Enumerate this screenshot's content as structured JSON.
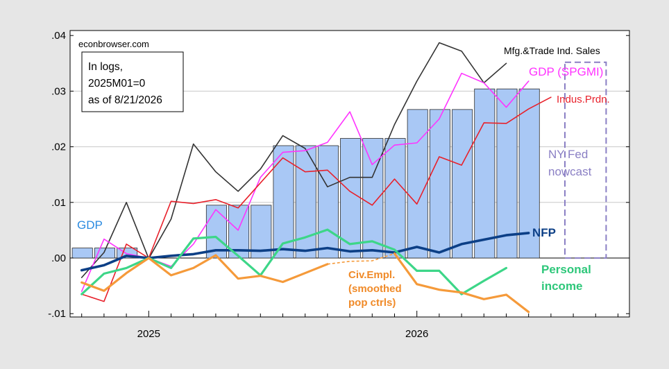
{
  "page": {
    "source_label": "econbrowser.com",
    "note_lines": [
      "In logs,",
      "2025M01=0",
      "as of 8/21/2026"
    ]
  },
  "chart_data": {
    "type": "line",
    "x_tick_labels": [
      "2025",
      "2026"
    ],
    "y_tick_labels": [
      ".04",
      ".03",
      ".02",
      ".01",
      ".00",
      "-.01"
    ],
    "ylim": [
      -0.01,
      0.04
    ],
    "xlim_months": [
      "2024-09",
      "2026-10"
    ],
    "grid": true,
    "months": [
      "2024-10",
      "2024-11",
      "2024-12",
      "2025-01",
      "2025-02",
      "2025-03",
      "2025-04",
      "2025-05",
      "2025-06",
      "2025-07",
      "2025-08",
      "2025-09",
      "2025-10",
      "2025-11",
      "2025-12",
      "2026-01",
      "2026-02",
      "2026-03",
      "2026-04",
      "2026-05",
      "2026-06",
      "2026-07",
      "2026-08",
      "2026-09"
    ],
    "bars": {
      "name": "GDP",
      "color": "#a9c8f5",
      "values": [
        0.0018,
        0.0018,
        0.0018,
        null,
        null,
        null,
        0.0095,
        0.0095,
        0.0095,
        0.0202,
        0.0202,
        0.0202,
        0.0215,
        0.0215,
        0.0215,
        0.0267,
        0.0267,
        0.0267,
        0.0304,
        0.0304,
        0.0304,
        null,
        null,
        null
      ]
    },
    "nowcast_box": {
      "label_lines": [
        "NY Fed",
        "nowcast"
      ],
      "x_start": "2026-08",
      "x_end": "2026-09",
      "y_top": 0.0352,
      "color": "#8a7fc4"
    },
    "series": [
      {
        "name": "Mfg.&Trade Ind. Sales",
        "color": "#333333",
        "width": 1.6,
        "values": [
          -0.0035,
          0.001,
          0.01,
          -0.0001,
          0.007,
          0.0205,
          0.0155,
          0.012,
          0.016,
          0.022,
          0.0197,
          0.0128,
          0.0145,
          0.0145,
          0.024,
          0.0318,
          0.0387,
          0.0372,
          0.0315,
          0.035,
          null,
          null,
          null,
          null
        ]
      },
      {
        "name": "GDP (SPGMI)",
        "color": "#ff33ff",
        "width": 1.6,
        "values": [
          -0.006,
          0.0034,
          0.0008,
          0.0,
          -0.0015,
          0.0025,
          0.0087,
          0.005,
          0.0145,
          0.019,
          0.0193,
          0.0208,
          0.0263,
          0.0168,
          0.0203,
          0.0207,
          0.025,
          0.0332,
          0.0315,
          0.0271,
          0.0318,
          null,
          null,
          null
        ]
      },
      {
        "name": "Indus.Prdn.",
        "color": "#e8212b",
        "width": 1.6,
        "values": [
          -0.0065,
          -0.0078,
          0.0025,
          0.0,
          0.0102,
          0.0098,
          0.0105,
          0.009,
          0.0135,
          0.018,
          0.0155,
          0.0158,
          0.012,
          0.0095,
          0.0142,
          0.0097,
          0.0182,
          0.0167,
          0.0243,
          0.0242,
          0.0268,
          0.0289,
          null,
          null
        ]
      },
      {
        "name": "NFP",
        "color": "#0c3f86",
        "width": 3.6,
        "values": [
          -0.0022,
          -0.0013,
          0.0004,
          0.0,
          0.0004,
          0.0007,
          0.0014,
          0.0014,
          0.0013,
          0.0016,
          0.0013,
          0.0018,
          0.0012,
          0.0014,
          0.001,
          0.002,
          0.001,
          0.0025,
          0.0033,
          0.0041,
          0.0045,
          null,
          null,
          null
        ]
      },
      {
        "name": "Personal income",
        "color": "#3dd688",
        "width": 3.2,
        "values": [
          -0.0065,
          -0.0028,
          -0.0018,
          0.0,
          -0.0018,
          0.0035,
          0.0038,
          0.0004,
          -0.0031,
          0.0026,
          0.0037,
          0.0051,
          0.0025,
          0.003,
          0.0015,
          -0.0023,
          -0.0023,
          -0.0065,
          -0.0041,
          -0.0018,
          null,
          null,
          null,
          null
        ]
      },
      {
        "name": "Civ.Empl. (smoothed pop ctrls)",
        "color": "#f59a3a",
        "width": 3.2,
        "values": [
          -0.0044,
          -0.0059,
          -0.0027,
          0.0,
          -0.0031,
          -0.0018,
          0.0005,
          -0.0037,
          -0.0032,
          -0.0043,
          -0.0027,
          -0.0011,
          null,
          null,
          0.0008,
          -0.0047,
          -0.0057,
          -0.0062,
          -0.0074,
          -0.0066,
          -0.0097,
          null,
          null,
          null
        ],
        "dashed_gap": {
          "from": "2025-09",
          "to": "2025-12",
          "values": [
            -0.0011,
            -0.0006,
            -0.0005,
            0.0008
          ]
        }
      }
    ],
    "labels": {
      "gdp": "GDP",
      "mfg": "Mfg.&Trade Ind. Sales",
      "gdp_spgmi": "GDP (SPGMI)",
      "indus": "Indus.Prdn.",
      "nfp": "NFP",
      "pi_1": "Personal",
      "pi_2": "income",
      "civ_1": "Civ.Empl.",
      "civ_2": "(smoothed",
      "civ_3": "pop ctrls)"
    }
  }
}
